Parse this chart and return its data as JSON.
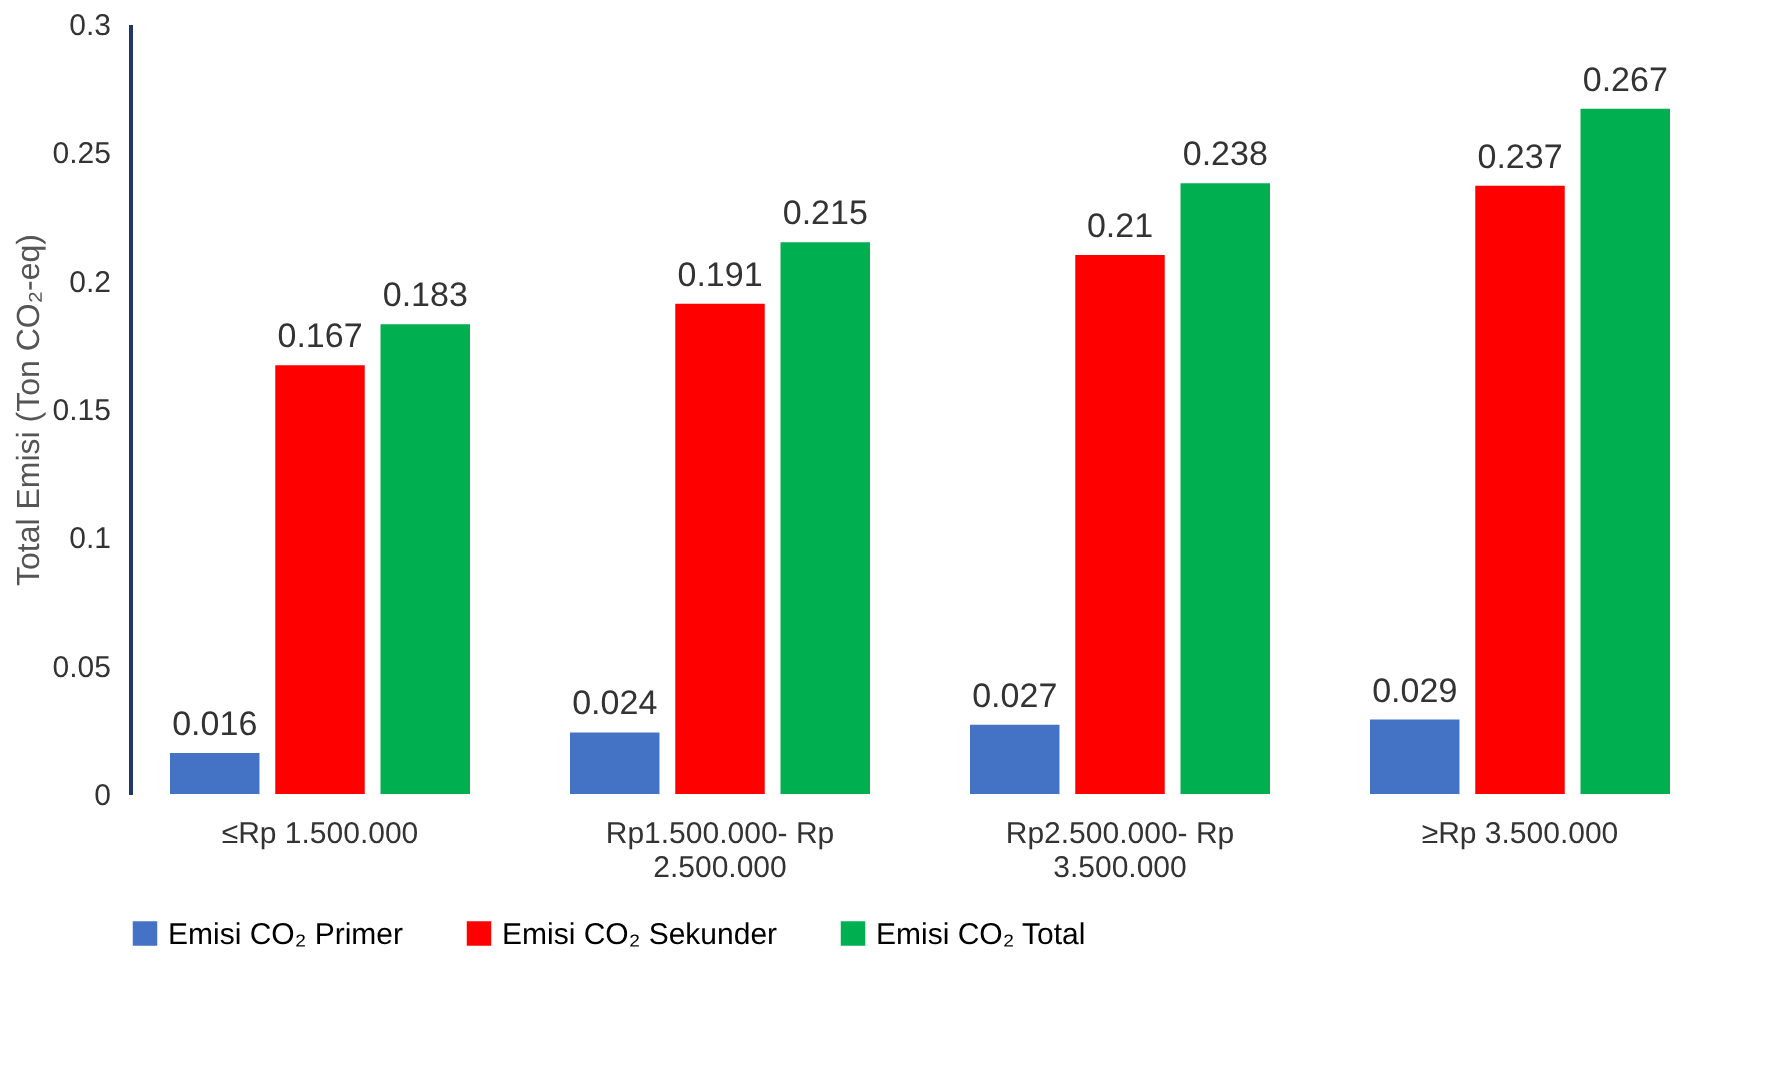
{
  "chart_data": {
    "type": "bar",
    "ylabel": "Total Emisi (Ton CO₂-eq)",
    "categories": [
      "≤Rp 1.500.000",
      "Rp1.500.000- Rp 2.500.000",
      "Rp2.500.000- Rp 3.500.000",
      "≥Rp 3.500.000"
    ],
    "series": [
      {
        "name": "Emisi CO₂ Primer",
        "color": "#4472c4",
        "values": [
          0.016,
          0.024,
          0.027,
          0.029
        ]
      },
      {
        "name": "Emisi CO₂ Sekunder",
        "color": "#ff0000",
        "values": [
          0.167,
          0.191,
          0.21,
          0.237
        ]
      },
      {
        "name": "Emisi CO₂ Total",
        "color": "#00b050",
        "values": [
          0.183,
          0.215,
          0.238,
          0.267
        ]
      }
    ],
    "ylim": [
      0,
      0.3
    ],
    "yticks": [
      0,
      0.05,
      0.1,
      0.15,
      0.2,
      0.25,
      0.3
    ],
    "data_labels": true,
    "grid": false,
    "legend": "bottom"
  }
}
